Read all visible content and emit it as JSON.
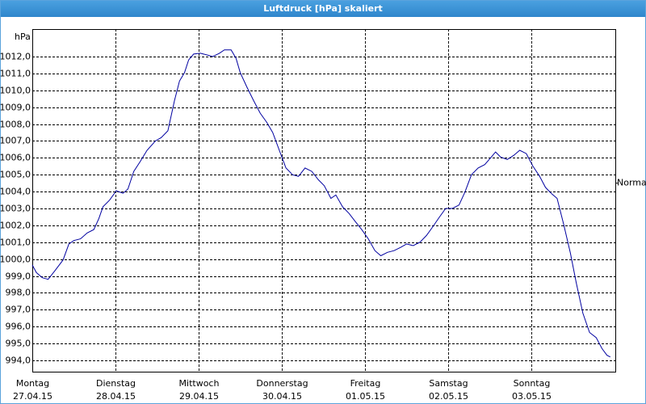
{
  "chart_data": {
    "type": "line",
    "title": "Luftdruck [hPa] skaliert",
    "y_unit": "hPa",
    "color": "#0000a0",
    "x": [
      0,
      0.05,
      0.12,
      0.19,
      0.27,
      0.37,
      0.44,
      0.5,
      0.58,
      0.66,
      0.74,
      0.8,
      0.85,
      0.93,
      1.01,
      1.09,
      1.15,
      1.22,
      1.3,
      1.38,
      1.48,
      1.55,
      1.63,
      1.71,
      1.77,
      1.83,
      1.88,
      1.94,
      2.02,
      2.1,
      2.17,
      2.25,
      2.31,
      2.39,
      2.45,
      2.5,
      2.58,
      2.66,
      2.74,
      2.82,
      2.89,
      2.97,
      3.05,
      3.13,
      3.2,
      3.28,
      3.36,
      3.44,
      3.51,
      3.59,
      3.65,
      3.73,
      3.81,
      3.88,
      3.96,
      4.04,
      4.12,
      4.19,
      4.27,
      4.35,
      4.43,
      4.5,
      4.58,
      4.66,
      4.74,
      4.82,
      4.89,
      4.97,
      5.05,
      5.13,
      5.2,
      5.28,
      5.36,
      5.44,
      5.51,
      5.57,
      5.63,
      5.71,
      5.79,
      5.86,
      5.94,
      6.02,
      6.1,
      6.17,
      6.25,
      6.31,
      6.39,
      6.47,
      6.54,
      6.62,
      6.7,
      6.78,
      6.85,
      6.91,
      6.95
    ],
    "values": [
      999.65,
      999.2,
      998.9,
      998.8,
      999.3,
      999.95,
      1000.9,
      1001.1,
      1001.2,
      1001.55,
      1001.75,
      1002.4,
      1003.1,
      1003.5,
      1004.05,
      1003.9,
      1004.15,
      1005.2,
      1005.8,
      1006.45,
      1007.0,
      1007.2,
      1007.6,
      1009.4,
      1010.55,
      1011.05,
      1011.8,
      1012.15,
      1012.2,
      1012.1,
      1012.0,
      1012.2,
      1012.4,
      1012.4,
      1011.9,
      1011.05,
      1010.2,
      1009.4,
      1008.65,
      1008.1,
      1007.5,
      1006.45,
      1005.4,
      1005.0,
      1004.9,
      1005.4,
      1005.2,
      1004.7,
      1004.35,
      1003.6,
      1003.8,
      1003.1,
      1002.7,
      1002.25,
      1001.75,
      1001.2,
      1000.5,
      1000.2,
      1000.4,
      1000.5,
      1000.7,
      1000.9,
      1000.8,
      1001.0,
      1001.4,
      1001.95,
      1002.45,
      1003.0,
      1003.0,
      1003.2,
      1003.95,
      1005.0,
      1005.4,
      1005.6,
      1006.0,
      1006.35,
      1006.05,
      1005.9,
      1006.15,
      1006.45,
      1006.25,
      1005.5,
      1004.9,
      1004.25,
      1003.85,
      1003.6,
      1002.05,
      1000.35,
      998.6,
      996.8,
      995.65,
      995.35,
      994.7,
      994.3,
      994.2
    ],
    "xlim": [
      0,
      7.01
    ],
    "xticks": [
      {
        "value": 0,
        "label": [
          "Montag",
          "27.04.15"
        ]
      },
      {
        "value": 1,
        "label": [
          "Dienstag",
          "28.04.15"
        ]
      },
      {
        "value": 2,
        "label": [
          "Mittwoch",
          "29.04.15"
        ]
      },
      {
        "value": 3,
        "label": [
          "Donnerstag",
          "30.04.15"
        ]
      },
      {
        "value": 4,
        "label": [
          "Freitag",
          "01.05.15"
        ]
      },
      {
        "value": 5,
        "label": [
          "Samstag",
          "02.05.15"
        ]
      },
      {
        "value": 6,
        "label": [
          "Sonntag",
          "03.05.15"
        ]
      }
    ],
    "ylim": [
      993.33,
      1013.63
    ],
    "yticks": [
      {
        "value": 994,
        "label": "994,0"
      },
      {
        "value": 995,
        "label": "995,0"
      },
      {
        "value": 996,
        "label": "996,0"
      },
      {
        "value": 997,
        "label": "997,0"
      },
      {
        "value": 998,
        "label": "998,0"
      },
      {
        "value": 999,
        "label": "999,0"
      },
      {
        "value": 1000,
        "label": "1000,0"
      },
      {
        "value": 1001,
        "label": "1001,0"
      },
      {
        "value": 1002,
        "label": "1002,0"
      },
      {
        "value": 1003,
        "label": "1003,0"
      },
      {
        "value": 1004,
        "label": "1004,0"
      },
      {
        "value": 1005,
        "label": "1005,0"
      },
      {
        "value": 1006,
        "label": "1006,0"
      },
      {
        "value": 1007,
        "label": "1007,0"
      },
      {
        "value": 1008,
        "label": "1008,0"
      },
      {
        "value": 1009,
        "label": "1009,0"
      },
      {
        "value": 1010,
        "label": "1010,0"
      },
      {
        "value": 1011,
        "label": "1011,0"
      },
      {
        "value": 1012,
        "label": "1012,0"
      }
    ],
    "annotations": [
      {
        "text": "Normal",
        "value": 1004.5
      }
    ],
    "grid": true
  }
}
